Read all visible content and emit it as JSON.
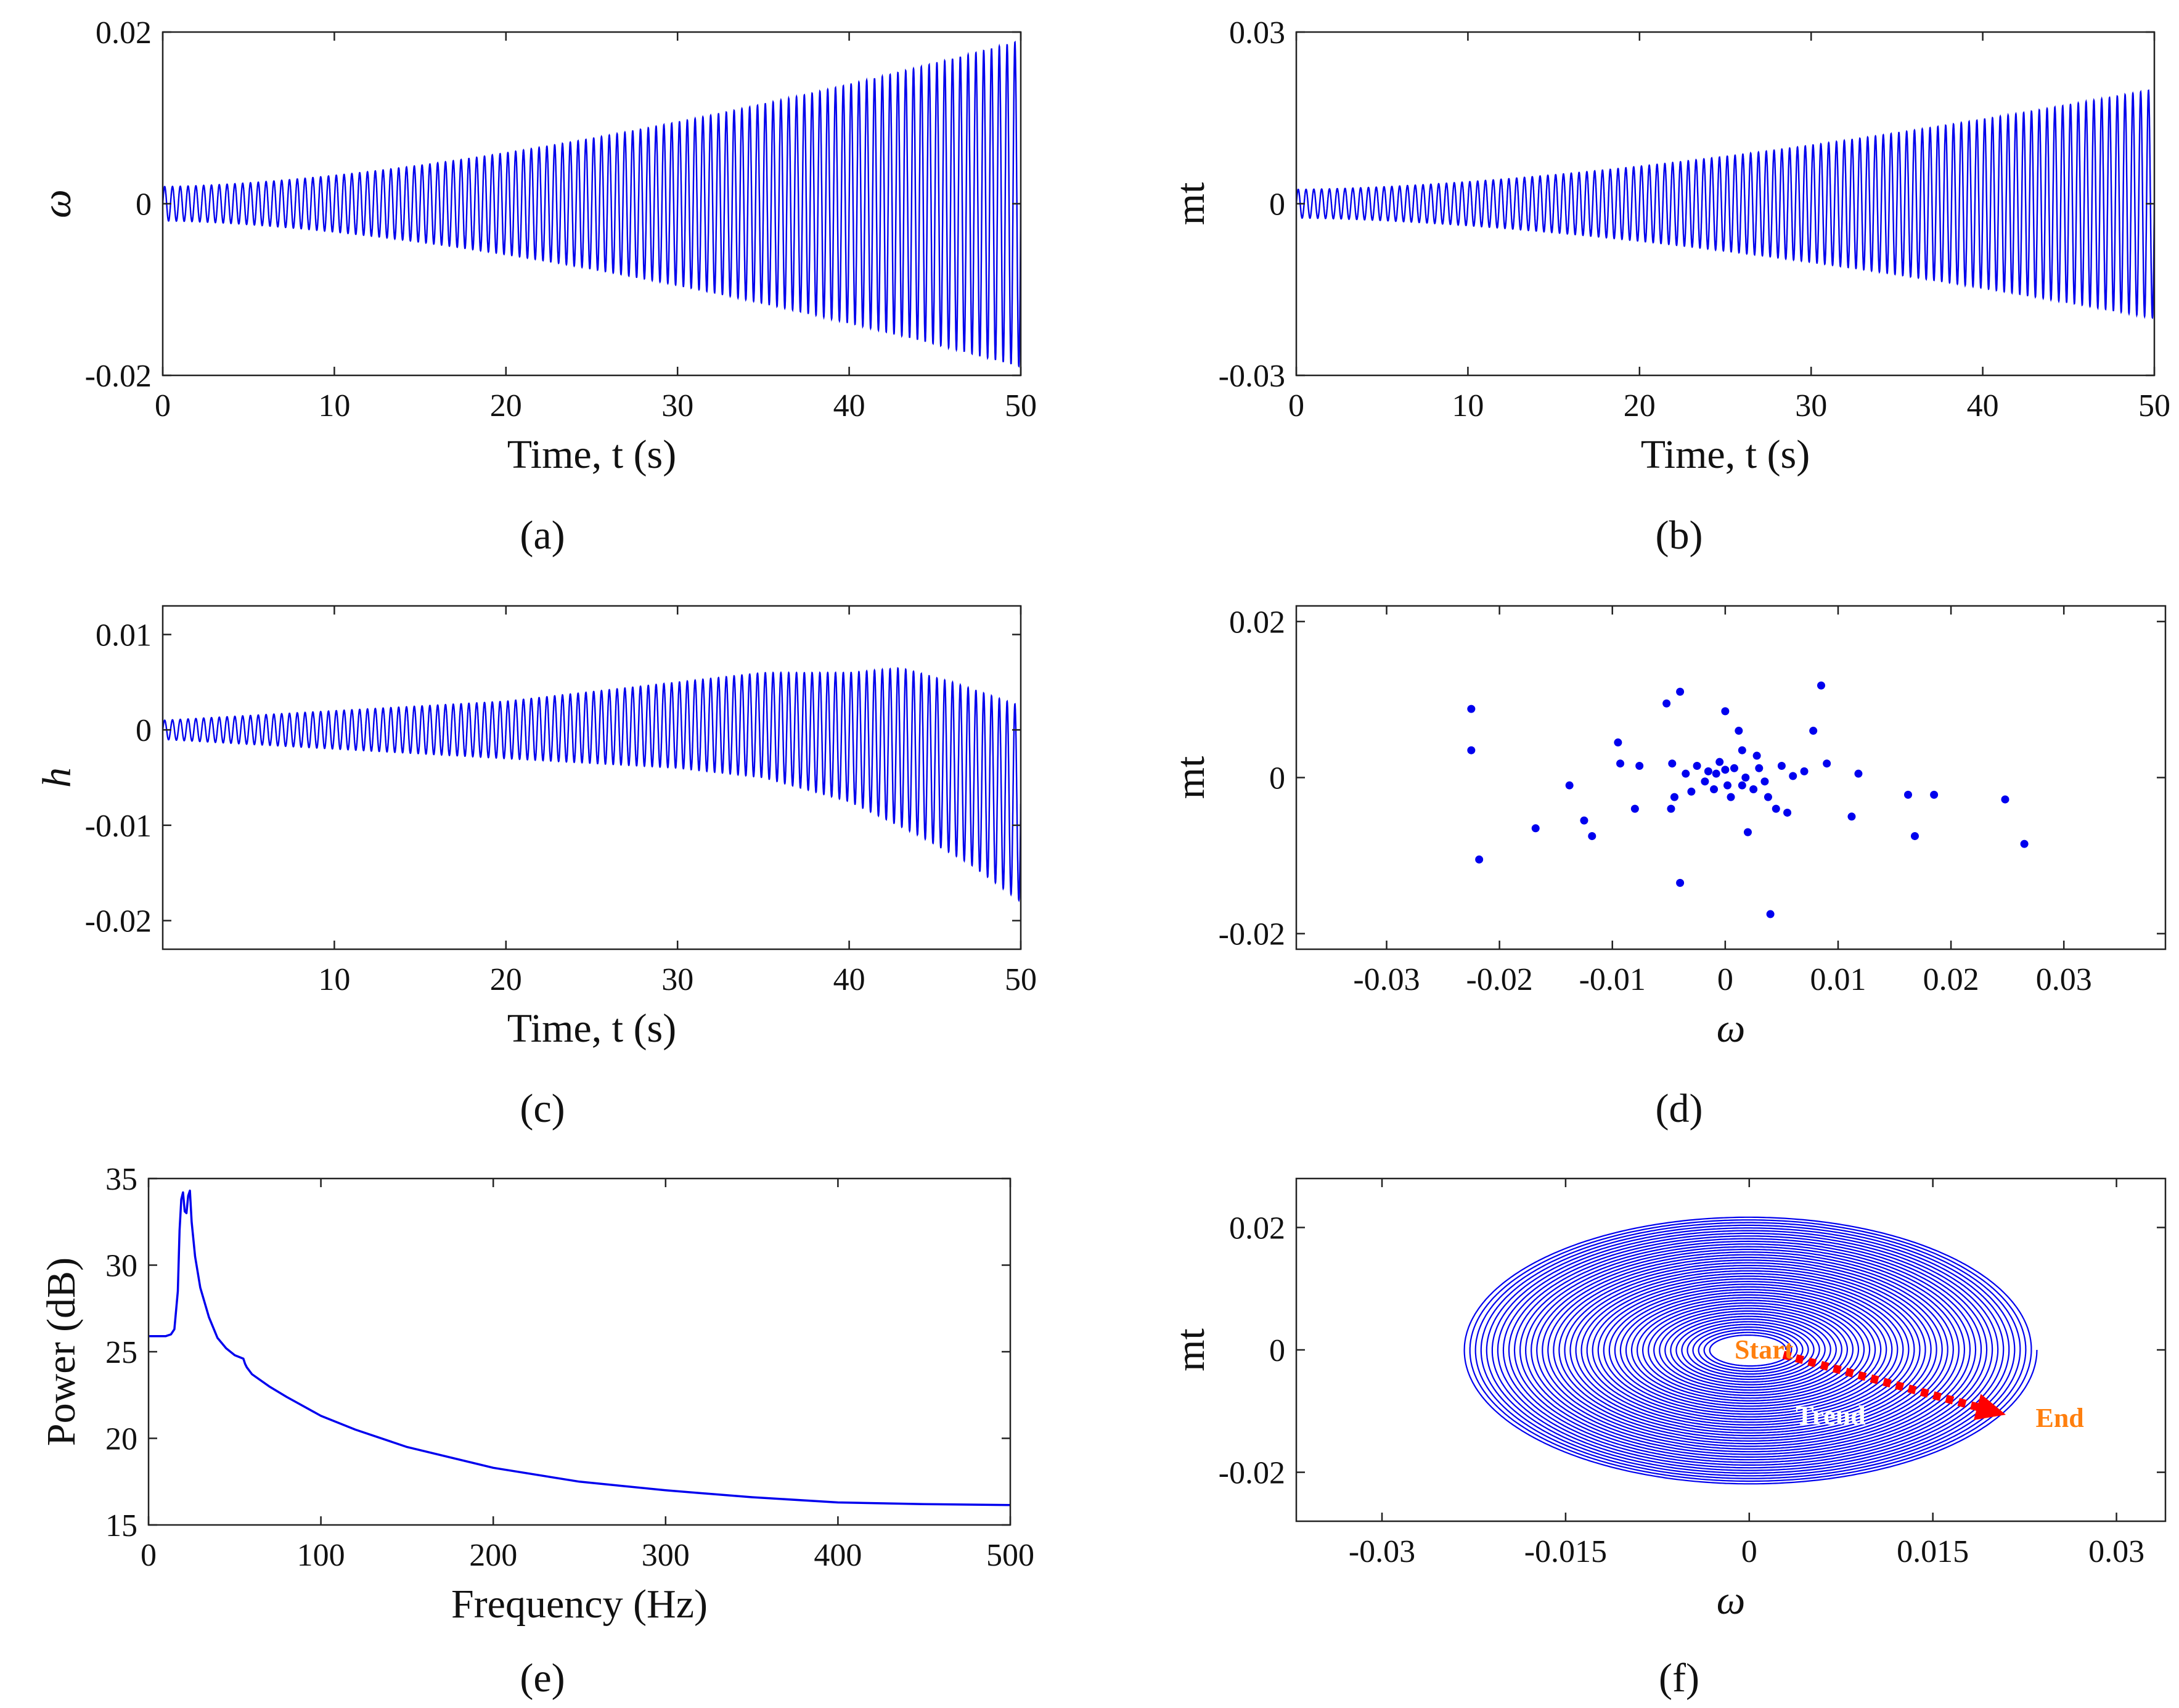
{
  "colors": {
    "series": "#0000ee",
    "trend_arrow": "#ff0000",
    "start_end_label": "#ff7f0e",
    "trend_label": "#ffffff"
  },
  "chart_data": [
    {
      "id": "a",
      "type": "line",
      "panel_label": "(a)",
      "xlabel": "Time, t (s)",
      "ylabel": "ω",
      "xlim": [
        0,
        50
      ],
      "ylim": [
        -0.02,
        0.02
      ],
      "xticks": [
        "0",
        "10",
        "20",
        "30",
        "40",
        "50"
      ],
      "yticks": [
        "-0.02",
        "0",
        "0.02"
      ],
      "signal": {
        "kind": "oscillation",
        "duration": 50,
        "cycles": 110,
        "amp_start": 0.002,
        "amp_end": 0.019
      }
    },
    {
      "id": "b",
      "type": "line",
      "panel_label": "(b)",
      "xlabel": "Time, t (s)",
      "ylabel": "mt",
      "xlim": [
        0,
        50
      ],
      "ylim": [
        -0.03,
        0.03
      ],
      "xticks": [
        "0",
        "10",
        "20",
        "30",
        "40",
        "50"
      ],
      "yticks": [
        "-0.03",
        "0",
        "0.03"
      ],
      "signal": {
        "kind": "oscillation",
        "duration": 50,
        "cycles": 110,
        "amp_start": 0.0025,
        "amp_end": 0.02
      }
    },
    {
      "id": "c",
      "type": "line",
      "panel_label": "(c)",
      "xlabel": "Time, t (s)",
      "ylabel": "h",
      "xlim": [
        0,
        50
      ],
      "ylim": [
        -0.023,
        0.013
      ],
      "xticks": [
        "10",
        "20",
        "30",
        "40",
        "50"
      ],
      "yticks": [
        "-0.02",
        "-0.01",
        "0",
        "0.01"
      ],
      "signal": {
        "kind": "oscillation",
        "duration": 50,
        "cycles": 110,
        "upper_envelope": [
          [
            0,
            0.001
          ],
          [
            10,
            0.002
          ],
          [
            20,
            0.003
          ],
          [
            30,
            0.005
          ],
          [
            35,
            0.006
          ],
          [
            40,
            0.006
          ],
          [
            43,
            0.0065
          ],
          [
            46,
            0.005
          ],
          [
            50,
            0.0025
          ]
        ],
        "lower_envelope": [
          [
            0,
            -0.001
          ],
          [
            10,
            -0.002
          ],
          [
            20,
            -0.003
          ],
          [
            30,
            -0.004
          ],
          [
            35,
            -0.005
          ],
          [
            40,
            -0.0075
          ],
          [
            44,
            -0.011
          ],
          [
            47,
            -0.014
          ],
          [
            50,
            -0.018
          ]
        ]
      }
    },
    {
      "id": "d",
      "type": "scatter",
      "panel_label": "(d)",
      "xlabel": "ω",
      "ylabel": "mt",
      "xlim": [
        -0.038,
        0.039
      ],
      "ylim": [
        -0.022,
        0.022
      ],
      "xticks": [
        "-0.03",
        "-0.02",
        "-0.01",
        "0",
        "0.01",
        "0.02",
        "0.03"
      ],
      "yticks": [
        "-0.02",
        "0",
        "0.02"
      ],
      "points": [
        [
          -0.0225,
          0.0088
        ],
        [
          -0.0225,
          0.0035
        ],
        [
          -0.0218,
          -0.0105
        ],
        [
          -0.0168,
          -0.0065
        ],
        [
          -0.0138,
          -0.001
        ],
        [
          -0.0125,
          -0.0055
        ],
        [
          -0.0118,
          -0.0075
        ],
        [
          -0.0095,
          0.0045
        ],
        [
          -0.0093,
          0.0018
        ],
        [
          -0.008,
          -0.004
        ],
        [
          -0.0076,
          0.0015
        ],
        [
          -0.0052,
          0.0095
        ],
        [
          -0.0047,
          0.0018
        ],
        [
          -0.0048,
          -0.004
        ],
        [
          -0.0045,
          -0.0025
        ],
        [
          -0.004,
          0.011
        ],
        [
          -0.004,
          -0.0135
        ],
        [
          -0.0035,
          0.0005
        ],
        [
          -0.003,
          -0.0018
        ],
        [
          -0.0025,
          0.0015
        ],
        [
          -0.0018,
          -0.0005
        ],
        [
          -0.0015,
          0.0008
        ],
        [
          -0.001,
          -0.0015
        ],
        [
          -0.0008,
          0.0005
        ],
        [
          -0.0005,
          0.002
        ],
        [
          0,
          0.0085
        ],
        [
          0,
          0.001
        ],
        [
          0.0002,
          -0.001
        ],
        [
          0.0005,
          -0.0025
        ],
        [
          0.0008,
          0.0012
        ],
        [
          0.0012,
          0.006
        ],
        [
          0.0015,
          0.0035
        ],
        [
          0.0015,
          -0.001
        ],
        [
          0.0018,
          0.0
        ],
        [
          0.002,
          -0.007
        ],
        [
          0.0025,
          -0.0015
        ],
        [
          0.0028,
          0.0028
        ],
        [
          0.003,
          0.0012
        ],
        [
          0.0035,
          -0.0005
        ],
        [
          0.0038,
          -0.0025
        ],
        [
          0.004,
          -0.0175
        ],
        [
          0.0045,
          -0.004
        ],
        [
          0.005,
          0.0015
        ],
        [
          0.0055,
          -0.0045
        ],
        [
          0.006,
          0.0002
        ],
        [
          0.007,
          0.0008
        ],
        [
          0.0078,
          0.006
        ],
        [
          0.0085,
          0.0118
        ],
        [
          0.009,
          0.0018
        ],
        [
          0.0112,
          -0.005
        ],
        [
          0.0118,
          0.0005
        ],
        [
          0.0162,
          -0.0022
        ],
        [
          0.0168,
          -0.0075
        ],
        [
          0.0185,
          -0.0022
        ],
        [
          0.0248,
          -0.0028
        ],
        [
          0.0265,
          -0.0085
        ]
      ]
    },
    {
      "id": "e",
      "type": "line",
      "panel_label": "(e)",
      "xlabel": "Frequency (Hz)",
      "ylabel": "Power (dB)",
      "xlim": [
        0,
        500
      ],
      "ylim": [
        15,
        35
      ],
      "xticks": [
        "0",
        "100",
        "200",
        "300",
        "400",
        "500"
      ],
      "yticks": [
        "15",
        "20",
        "25",
        "30",
        "35"
      ],
      "x": [
        0,
        10,
        13,
        15,
        17,
        18,
        19,
        20,
        21,
        22,
        23,
        24,
        25,
        27,
        30,
        35,
        40,
        45,
        50,
        55,
        56,
        57,
        60,
        70,
        80,
        100,
        120,
        150,
        200,
        250,
        300,
        350,
        400,
        450,
        500
      ],
      "y": [
        25.9,
        25.9,
        26.0,
        26.3,
        28.5,
        32.0,
        33.8,
        34.2,
        33.1,
        33.0,
        34.0,
        34.3,
        32.5,
        30.5,
        28.7,
        27.0,
        25.8,
        25.2,
        24.8,
        24.6,
        24.3,
        24.1,
        23.7,
        23.0,
        22.4,
        21.3,
        20.5,
        19.5,
        18.3,
        17.5,
        17.0,
        16.6,
        16.3,
        16.2,
        16.15
      ]
    },
    {
      "id": "f",
      "type": "line",
      "panel_label": "(f)",
      "xlabel": "ω",
      "ylabel": "mt",
      "xlim": [
        -0.037,
        0.034
      ],
      "ylim": [
        -0.028,
        0.028
      ],
      "xticks": [
        "-0.03",
        "-0.015",
        "0",
        "0.015",
        "0.03"
      ],
      "yticks": [
        "-0.02",
        "0",
        "0.02"
      ],
      "spiral": {
        "turns": 45,
        "rx_start": 0.003,
        "ry_start": 0.0023,
        "rx_end": 0.0235,
        "ry_end": 0.022,
        "tilt": -0.06
      },
      "annotations": {
        "start": "Start",
        "end": "End",
        "trend": "Trend"
      }
    }
  ]
}
